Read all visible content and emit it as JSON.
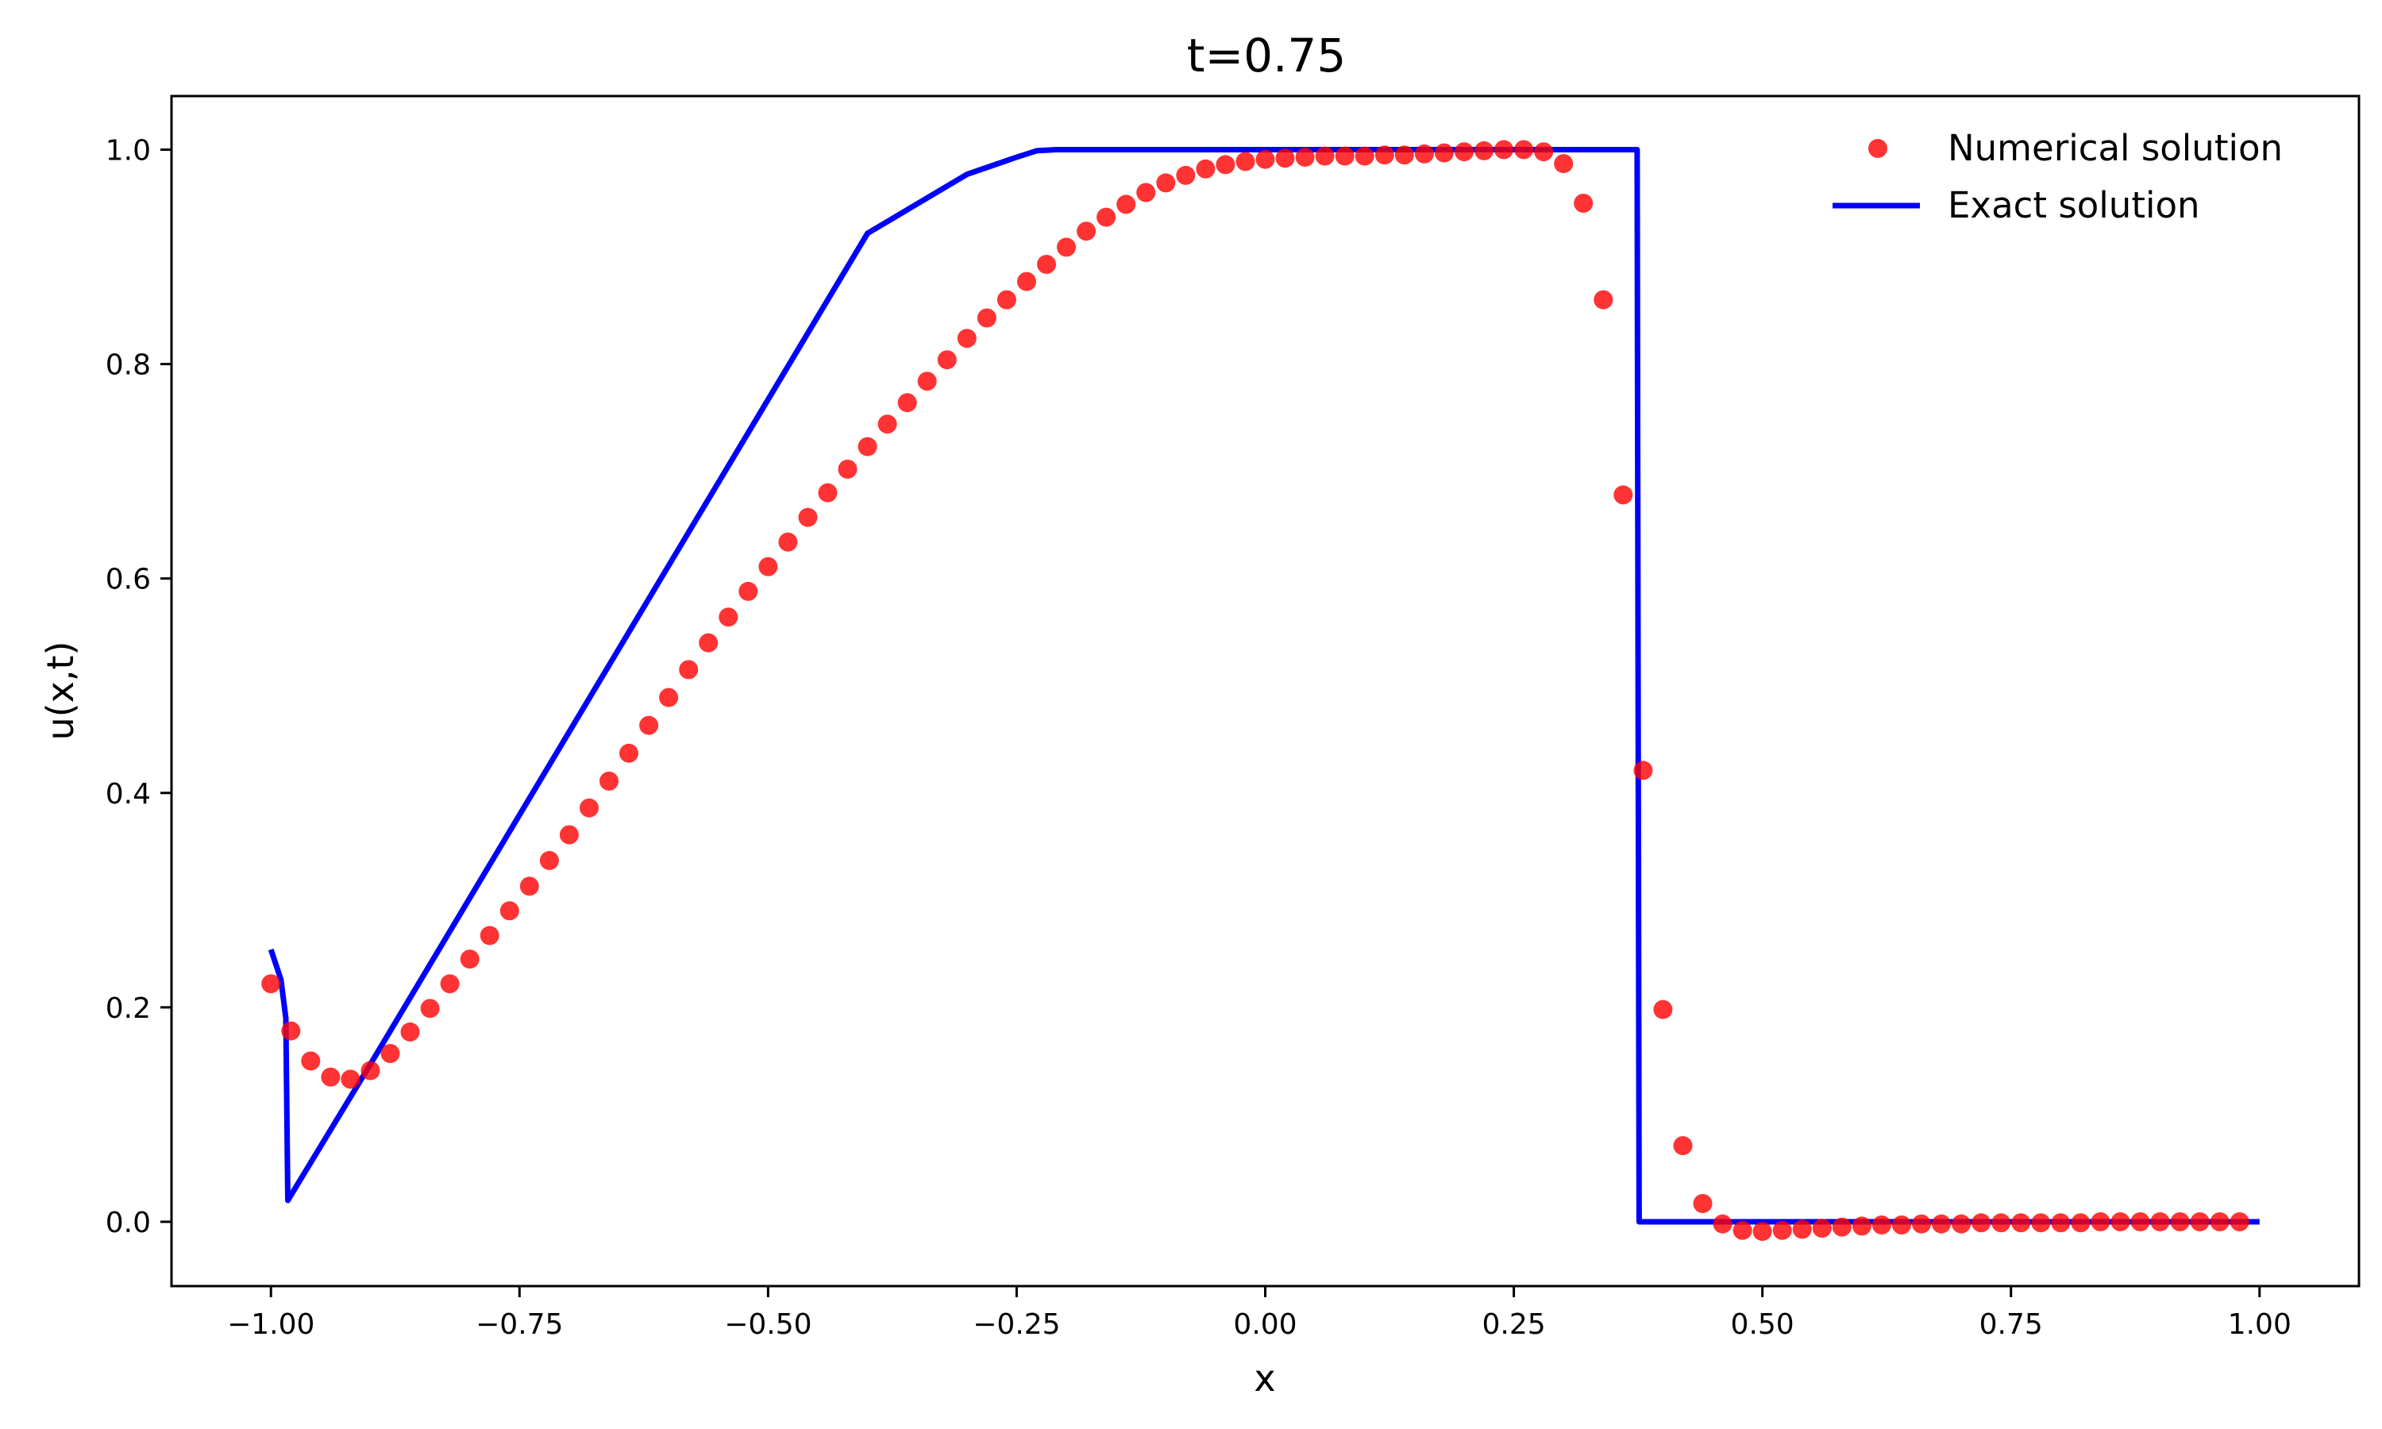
{
  "chart_data": {
    "type": "line",
    "title": "t=0.75",
    "xlabel": "x",
    "ylabel": "u(x,t)",
    "xlim": [
      -1.1,
      1.1
    ],
    "ylim": [
      -0.06,
      1.05
    ],
    "xticks": [
      -1.0,
      -0.75,
      -0.5,
      -0.25,
      0.0,
      0.25,
      0.5,
      0.75,
      1.0
    ],
    "xtick_labels": [
      "−1.00",
      "−0.75",
      "−0.50",
      "−0.25",
      "0.00",
      "0.25",
      "0.50",
      "0.75",
      "1.00"
    ],
    "yticks": [
      0.0,
      0.2,
      0.4,
      0.6,
      0.8,
      1.0
    ],
    "ytick_labels": [
      "0.0",
      "0.2",
      "0.4",
      "0.6",
      "0.8",
      "1.0"
    ],
    "grid": false,
    "legend_position": "top-right",
    "series": [
      {
        "name": "Numerical solution",
        "style": "markers",
        "color": "#ff0000",
        "x": [
          -1.0,
          -0.98,
          -0.96,
          -0.94,
          -0.92,
          -0.9,
          -0.88,
          -0.86,
          -0.84,
          -0.82,
          -0.8,
          -0.78,
          -0.76,
          -0.74,
          -0.72,
          -0.7,
          -0.68,
          -0.66,
          -0.64,
          -0.62,
          -0.6,
          -0.58,
          -0.56,
          -0.54,
          -0.52,
          -0.5,
          -0.48,
          -0.46,
          -0.44,
          -0.42,
          -0.4,
          -0.38,
          -0.36,
          -0.34,
          -0.32,
          -0.3,
          -0.28,
          -0.26,
          -0.24,
          -0.22,
          -0.2,
          -0.18,
          -0.16,
          -0.14,
          -0.12,
          -0.1,
          -0.08,
          -0.06,
          -0.04,
          -0.02,
          0.0,
          0.02,
          0.04,
          0.06,
          0.08,
          0.1,
          0.12,
          0.14,
          0.16,
          0.18,
          0.2,
          0.22,
          0.24,
          0.26,
          0.28,
          0.3,
          0.32,
          0.34,
          0.36,
          0.38,
          0.4,
          0.42,
          0.44,
          0.46,
          0.48,
          0.5,
          0.52,
          0.54,
          0.56,
          0.58,
          0.6,
          0.62,
          0.64,
          0.66,
          0.68,
          0.7,
          0.72,
          0.74,
          0.76,
          0.78,
          0.8,
          0.82,
          0.84,
          0.86,
          0.88,
          0.9,
          0.92,
          0.94,
          0.96,
          0.98
        ],
        "y": [
          0.222,
          0.178,
          0.15,
          0.135,
          0.133,
          0.141,
          0.157,
          0.177,
          0.199,
          0.222,
          0.245,
          0.267,
          0.29,
          0.313,
          0.337,
          0.361,
          0.386,
          0.411,
          0.437,
          0.463,
          0.489,
          0.515,
          0.54,
          0.564,
          0.588,
          0.611,
          0.634,
          0.657,
          0.68,
          0.702,
          0.723,
          0.744,
          0.764,
          0.784,
          0.804,
          0.824,
          0.843,
          0.86,
          0.877,
          0.893,
          0.909,
          0.924,
          0.937,
          0.949,
          0.96,
          0.969,
          0.976,
          0.982,
          0.986,
          0.989,
          0.991,
          0.992,
          0.993,
          0.994,
          0.994,
          0.994,
          0.995,
          0.995,
          0.996,
          0.997,
          0.998,
          0.999,
          1.0,
          1.0,
          0.998,
          0.987,
          0.95,
          0.86,
          0.678,
          0.421,
          0.198,
          0.071,
          0.017,
          -0.002,
          -0.008,
          -0.009,
          -0.008,
          -0.007,
          -0.006,
          -0.005,
          -0.004,
          -0.003,
          -0.003,
          -0.002,
          -0.002,
          -0.002,
          -0.001,
          -0.001,
          -0.001,
          -0.001,
          -0.001,
          -0.001,
          0.0,
          0.0,
          0.0,
          0.0,
          0.0,
          0.0,
          0.0,
          0.0
        ]
      },
      {
        "name": "Exact solution",
        "style": "line",
        "color": "#0000ff",
        "x": [
          -1.0,
          -0.99,
          -0.985,
          -0.984,
          -0.983,
          -0.9,
          -0.8,
          -0.7,
          -0.6,
          -0.5,
          -0.4,
          -0.3,
          -0.25,
          -0.23,
          -0.21,
          -0.2,
          -0.1,
          0.0,
          0.1,
          0.2,
          0.3,
          0.374,
          0.375,
          0.376,
          0.4,
          0.5,
          0.6,
          0.7,
          0.8,
          0.9,
          1.0
        ],
        "y": [
          0.254,
          0.226,
          0.19,
          0.1,
          0.02,
          0.147,
          0.302,
          0.457,
          0.612,
          0.767,
          0.922,
          0.977,
          0.993,
          0.999,
          1.0,
          1.0,
          1.0,
          1.0,
          1.0,
          1.0,
          1.0,
          1.0,
          0.5,
          0.0,
          0.0,
          0.0,
          0.0,
          0.0,
          0.0,
          0.0,
          0.0
        ]
      }
    ]
  }
}
